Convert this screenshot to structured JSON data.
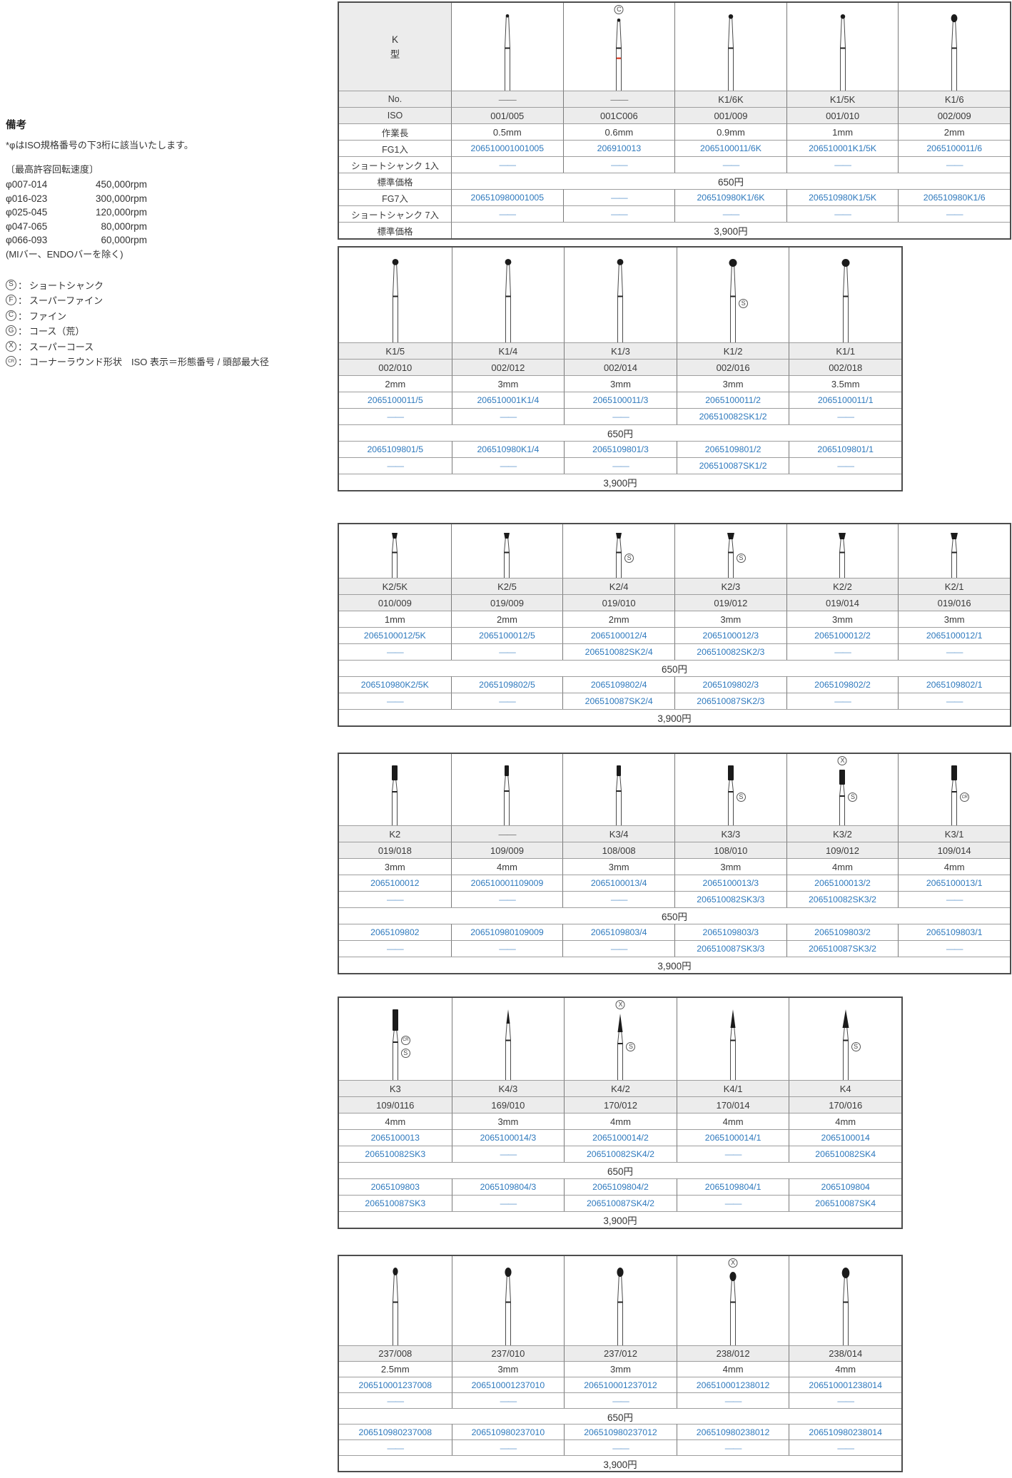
{
  "notes": {
    "title": "備考",
    "iso_note": "*φはISO規格番号の下3桁に該当いたします。",
    "speed_heading": "〔最高許容回転速度〕",
    "speeds": [
      {
        "range": "φ007-014",
        "rpm": "450,000rpm"
      },
      {
        "range": "φ016-023",
        "rpm": "300,000rpm"
      },
      {
        "range": "φ025-045",
        "rpm": "120,000rpm"
      },
      {
        "range": "φ047-065",
        "rpm": "80,000rpm"
      },
      {
        "range": "φ066-093",
        "rpm": "60,000rpm"
      }
    ],
    "speed_note": "(MIバー、ENDOバーを除く)",
    "sep": "：",
    "legend": [
      {
        "symbol": "S",
        "label": "ショートシャンク"
      },
      {
        "symbol": "F",
        "label": "スーパーファイン"
      },
      {
        "symbol": "C",
        "label": "ファイン"
      },
      {
        "symbol": "G",
        "label": "コース（荒）"
      },
      {
        "symbol": "X",
        "label": "スーパーコース"
      },
      {
        "symbol": "CR",
        "label": "コーナーラウンド形状　ISO 表示＝形態番号 / 頭部最大径"
      }
    ]
  },
  "series_label": {
    "line1": "K",
    "line2": "型"
  },
  "row_labels": {
    "no": "No.",
    "iso": "ISO",
    "length": "作業長",
    "fg1": "FG1入",
    "ss1": "ショートシャンク 1入",
    "price": "標準価格",
    "fg7": "FG7入",
    "ss7": "ショートシャンク 7入"
  },
  "prices": {
    "single": "650円",
    "pack": "3,900円"
  },
  "dash": "——",
  "tables": [
    {
      "id": "bur-table-k1-point",
      "label_col": true,
      "has_name_row": true,
      "columns": [
        {
          "name": "——",
          "iso": "001/005",
          "length": "0.5mm",
          "fg1": "206510001001005",
          "ss1": "——",
          "fg7": "206510980001005",
          "ss7": "——",
          "bur": {
            "shape": "ball",
            "size": "xs"
          }
        },
        {
          "name": "——",
          "iso": "001C006",
          "length": "0.6mm",
          "fg1": "206910013",
          "ss1": "——",
          "fg7": "——",
          "ss7": "——",
          "bur": {
            "shape": "ball",
            "size": "xs",
            "top_mark": "C",
            "red_band": true
          }
        },
        {
          "name": "K1/6K",
          "iso": "001/009",
          "length": "0.9mm",
          "fg1": "2065100011/6K",
          "ss1": "——",
          "fg7": "206510980K1/6K",
          "ss7": "——",
          "bur": {
            "shape": "ball",
            "size": "s"
          }
        },
        {
          "name": "K1/5K",
          "iso": "001/010",
          "length": "1mm",
          "fg1": "206510001K1/5K",
          "ss1": "——",
          "fg7": "206510980K1/5K",
          "ss7": "——",
          "bur": {
            "shape": "ball",
            "size": "s"
          }
        },
        {
          "name": "K1/6",
          "iso": "002/009",
          "length": "2mm",
          "fg1": "2065100011/6",
          "ss1": "——",
          "fg7": "206510980K1/6",
          "ss7": "——",
          "bur": {
            "shape": "dome",
            "size": "m"
          }
        }
      ]
    },
    {
      "id": "bur-table-k1-round",
      "label_col": false,
      "has_name_row": true,
      "columns": [
        {
          "name": "K1/5",
          "iso": "002/010",
          "length": "2mm",
          "fg1": "2065100011/5",
          "ss1": "——",
          "fg7": "2065109801/5",
          "ss7": "——",
          "bur": {
            "shape": "ball",
            "size": "m"
          }
        },
        {
          "name": "K1/4",
          "iso": "002/012",
          "length": "3mm",
          "fg1": "206510001K1/4",
          "ss1": "——",
          "fg7": "206510980K1/4",
          "ss7": "——",
          "bur": {
            "shape": "ball",
            "size": "m"
          }
        },
        {
          "name": "K1/3",
          "iso": "002/014",
          "length": "3mm",
          "fg1": "2065100011/3",
          "ss1": "——",
          "fg7": "2065109801/3",
          "ss7": "——",
          "bur": {
            "shape": "ball",
            "size": "m"
          }
        },
        {
          "name": "K1/2",
          "iso": "002/016",
          "length": "3mm",
          "fg1": "2065100011/2",
          "ss1": "206510082SK1/2",
          "fg7": "2065109801/2",
          "ss7": "206510087SK1/2",
          "bur": {
            "shape": "ball",
            "size": "l",
            "side_marks": [
              "S"
            ]
          }
        },
        {
          "name": "K1/1",
          "iso": "002/018",
          "length": "3.5mm",
          "fg1": "2065100011/1",
          "ss1": "——",
          "fg7": "2065109801/1",
          "ss7": "——",
          "bur": {
            "shape": "ball",
            "size": "l"
          }
        }
      ]
    },
    {
      "id": "bur-table-k2-inverted-cone",
      "label_col": false,
      "has_name_row": true,
      "columns": [
        {
          "name": "K2/5K",
          "iso": "010/009",
          "length": "1mm",
          "fg1": "2065100012/5K",
          "ss1": "——",
          "fg7": "206510980K2/5K",
          "ss7": "——",
          "bur": {
            "shape": "invcone",
            "size": "s"
          }
        },
        {
          "name": "K2/5",
          "iso": "019/009",
          "length": "2mm",
          "fg1": "2065100012/5",
          "ss1": "——",
          "fg7": "2065109802/5",
          "ss7": "——",
          "bur": {
            "shape": "invcone",
            "size": "s"
          }
        },
        {
          "name": "K2/4",
          "iso": "019/010",
          "length": "2mm",
          "fg1": "2065100012/4",
          "ss1": "206510082SK2/4",
          "fg7": "2065109802/4",
          "ss7": "206510087SK2/4",
          "bur": {
            "shape": "invcone",
            "size": "s",
            "side_marks": [
              "S"
            ]
          }
        },
        {
          "name": "K2/3",
          "iso": "019/012",
          "length": "3mm",
          "fg1": "2065100012/3",
          "ss1": "206510082SK2/3",
          "fg7": "2065109802/3",
          "ss7": "206510087SK2/3",
          "bur": {
            "shape": "invcone",
            "size": "m",
            "side_marks": [
              "S"
            ]
          }
        },
        {
          "name": "K2/2",
          "iso": "019/014",
          "length": "3mm",
          "fg1": "2065100012/2",
          "ss1": "——",
          "fg7": "2065109802/2",
          "ss7": "——",
          "bur": {
            "shape": "invcone",
            "size": "m"
          }
        },
        {
          "name": "K2/1",
          "iso": "019/016",
          "length": "3mm",
          "fg1": "2065100012/1",
          "ss1": "——",
          "fg7": "2065109802/1",
          "ss7": "——",
          "bur": {
            "shape": "invcone",
            "size": "m"
          }
        }
      ]
    },
    {
      "id": "bur-table-k2-k3-cylinder",
      "label_col": false,
      "has_name_row": true,
      "columns": [
        {
          "name": "K2",
          "iso": "019/018",
          "length": "3mm",
          "fg1": "2065100012",
          "ss1": "——",
          "fg7": "2065109802",
          "ss7": "——",
          "bur": {
            "shape": "cyl",
            "size": "m"
          }
        },
        {
          "name": "——",
          "iso": "109/009",
          "length": "4mm",
          "fg1": "206510001109009",
          "ss1": "——",
          "fg7": "206510980109009",
          "ss7": "——",
          "bur": {
            "shape": "cyl",
            "size": "s"
          }
        },
        {
          "name": "K3/4",
          "iso": "108/008",
          "length": "3mm",
          "fg1": "2065100013/4",
          "ss1": "——",
          "fg7": "2065109803/4",
          "ss7": "——",
          "bur": {
            "shape": "cyl",
            "size": "s"
          }
        },
        {
          "name": "K3/3",
          "iso": "108/010",
          "length": "3mm",
          "fg1": "2065100013/3",
          "ss1": "206510082SK3/3",
          "fg7": "2065109803/3",
          "ss7": "206510087SK3/3",
          "bur": {
            "shape": "cyl",
            "size": "m",
            "side_marks": [
              "S"
            ]
          }
        },
        {
          "name": "K3/2",
          "iso": "109/012",
          "length": "4mm",
          "fg1": "2065100013/2",
          "ss1": "206510082SK3/2",
          "fg7": "2065109803/2",
          "ss7": "206510087SK3/2",
          "bur": {
            "shape": "cyl",
            "size": "m",
            "top_mark": "X",
            "side_marks": [
              "S"
            ]
          }
        },
        {
          "name": "K3/1",
          "iso": "109/014",
          "length": "4mm",
          "fg1": "2065100013/1",
          "ss1": "——",
          "fg7": "2065109803/1",
          "ss7": "——",
          "bur": {
            "shape": "cyl",
            "size": "m",
            "side_marks": [
              "CR"
            ]
          }
        }
      ]
    },
    {
      "id": "bur-table-k3-k4-taper",
      "label_col": false,
      "has_name_row": true,
      "columns": [
        {
          "name": "K3",
          "iso": "109/0116",
          "length": "4mm",
          "fg1": "2065100013",
          "ss1": "206510082SK3",
          "fg7": "2065109803",
          "ss7": "206510087SK3",
          "bur": {
            "shape": "cyl",
            "size": "l",
            "side_marks": [
              "CR",
              "S"
            ]
          }
        },
        {
          "name": "K4/3",
          "iso": "169/010",
          "length": "3mm",
          "fg1": "2065100014/3",
          "ss1": "——",
          "fg7": "2065109804/3",
          "ss7": "——",
          "bur": {
            "shape": "taper",
            "size": "s"
          }
        },
        {
          "name": "K4/2",
          "iso": "170/012",
          "length": "4mm",
          "fg1": "2065100014/2",
          "ss1": "206510082SK4/2",
          "fg7": "2065109804/2",
          "ss7": "206510087SK4/2",
          "bur": {
            "shape": "taper",
            "size": "m",
            "top_mark": "X",
            "side_marks": [
              "S"
            ]
          }
        },
        {
          "name": "K4/1",
          "iso": "170/014",
          "length": "4mm",
          "fg1": "2065100014/1",
          "ss1": "——",
          "fg7": "2065109804/1",
          "ss7": "——",
          "bur": {
            "shape": "taper",
            "size": "m"
          }
        },
        {
          "name": "K4",
          "iso": "170/016",
          "length": "4mm",
          "fg1": "2065100014",
          "ss1": "206510082SK4",
          "fg7": "2065109804",
          "ss7": "206510087SK4",
          "bur": {
            "shape": "taper",
            "size": "l",
            "side_marks": [
              "S"
            ]
          }
        }
      ]
    },
    {
      "id": "bur-table-pear",
      "label_col": false,
      "has_name_row": false,
      "columns": [
        {
          "iso": "237/008",
          "length": "2.5mm",
          "fg1": "206510001237008",
          "ss1": "——",
          "fg7": "206510980237008",
          "ss7": "——",
          "bur": {
            "shape": "pear",
            "size": "s"
          }
        },
        {
          "iso": "237/010",
          "length": "3mm",
          "fg1": "206510001237010",
          "ss1": "——",
          "fg7": "206510980237010",
          "ss7": "——",
          "bur": {
            "shape": "pear",
            "size": "m"
          }
        },
        {
          "iso": "237/012",
          "length": "3mm",
          "fg1": "206510001237012",
          "ss1": "——",
          "fg7": "206510980237012",
          "ss7": "——",
          "bur": {
            "shape": "pear",
            "size": "m"
          }
        },
        {
          "iso": "238/012",
          "length": "4mm",
          "fg1": "206510001238012",
          "ss1": "——",
          "fg7": "206510980238012",
          "ss7": "——",
          "bur": {
            "shape": "pear",
            "size": "m",
            "top_mark": "X"
          }
        },
        {
          "iso": "238/014",
          "length": "4mm",
          "fg1": "206510001238014",
          "ss1": "——",
          "fg7": "206510980238014",
          "ss7": "——",
          "bur": {
            "shape": "pear",
            "size": "l"
          }
        }
      ]
    }
  ],
  "colors": {
    "link_blue": "#2e79bd",
    "gray_row": "#ececec",
    "red_band": "#e0452f",
    "bur_head": "#1b1b1b"
  }
}
